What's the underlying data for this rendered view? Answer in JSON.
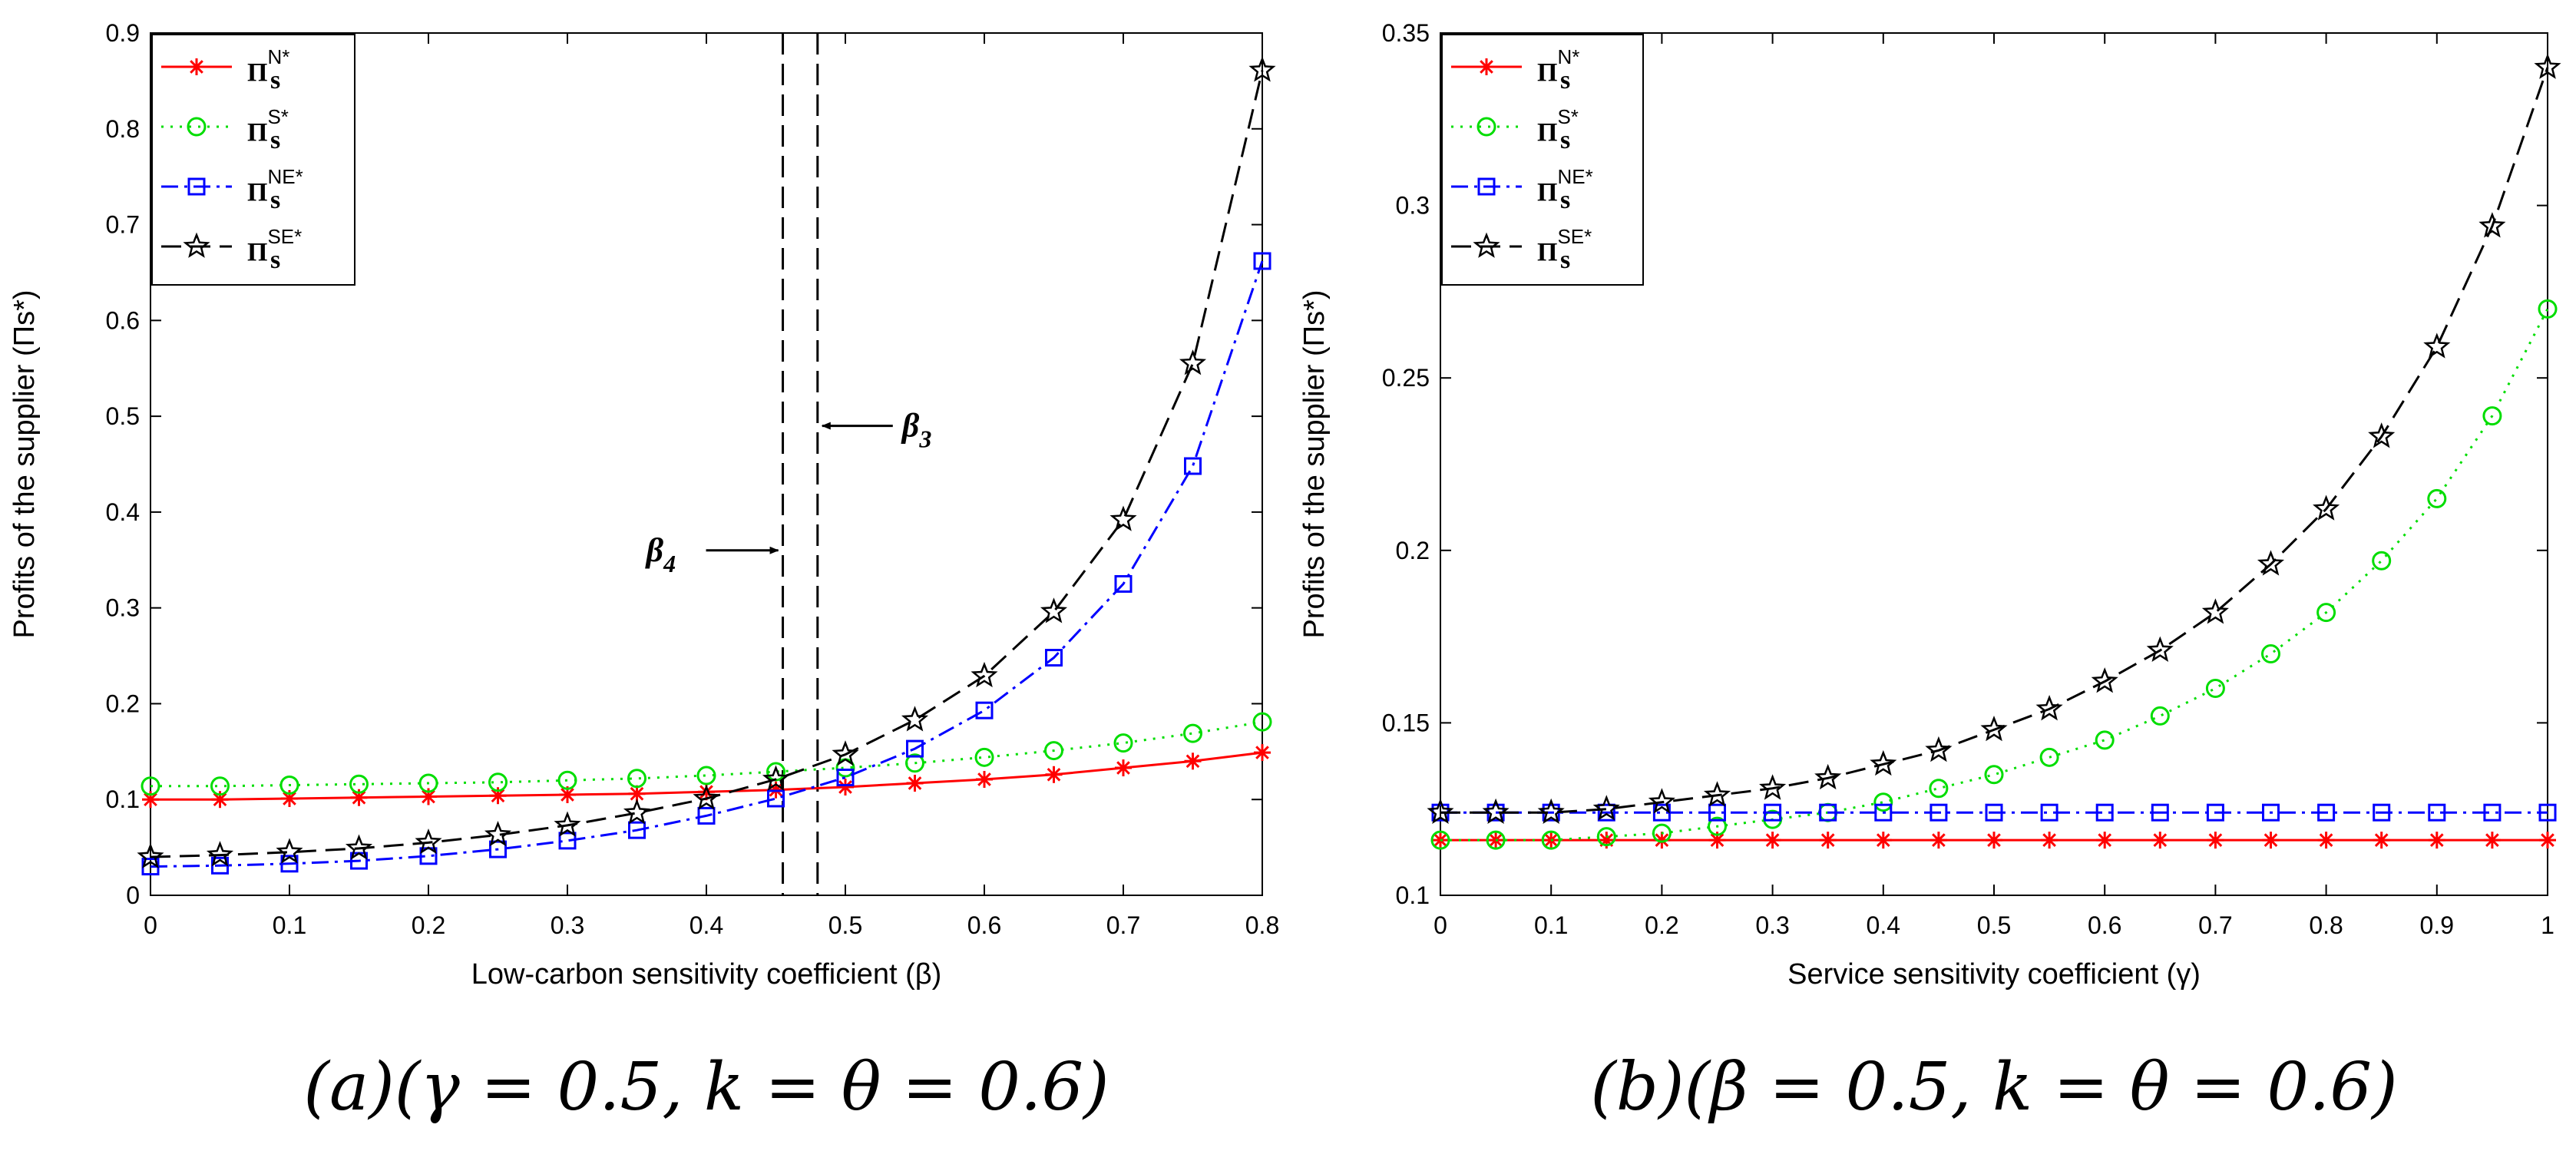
{
  "chart_data": [
    {
      "type": "line",
      "id": "a",
      "xlabel": "Low-carbon sensitivity coefficient (β)",
      "ylabel": "Profits of the supplier (Πs*)",
      "xlim": [
        0,
        0.8
      ],
      "ylim": [
        0,
        0.9
      ],
      "xticks": [
        0,
        0.1,
        0.2,
        0.3,
        0.4,
        0.5,
        0.6,
        0.7,
        0.8
      ],
      "yticks": [
        0,
        0.1,
        0.2,
        0.3,
        0.4,
        0.5,
        0.6,
        0.7,
        0.8,
        0.9
      ],
      "xtick_labels": [
        "0",
        "0.1",
        "0.2",
        "0.3",
        "0.4",
        "0.5",
        "0.6",
        "0.7",
        "0.8"
      ],
      "ytick_labels": [
        "0",
        "0.1",
        "0.2",
        "0.3",
        "0.4",
        "0.5",
        "0.6",
        "0.7",
        "0.8",
        "0.9"
      ],
      "x": [
        0,
        0.05,
        0.1,
        0.15,
        0.2,
        0.25,
        0.3,
        0.35,
        0.4,
        0.45,
        0.5,
        0.55,
        0.6,
        0.65,
        0.7,
        0.75,
        0.8
      ],
      "series": [
        {
          "name": "Πs N*",
          "base": "Π",
          "sub": "s",
          "sup": "N*",
          "color": "#ff0000",
          "marker": "asterisk",
          "dash": "",
          "values": [
            0.1,
            0.1,
            0.101,
            0.102,
            0.103,
            0.104,
            0.105,
            0.106,
            0.108,
            0.11,
            0.113,
            0.117,
            0.121,
            0.126,
            0.133,
            0.14,
            0.149
          ]
        },
        {
          "name": "Πs S*",
          "base": "Π",
          "sub": "s",
          "sup": "S*",
          "color": "#00dd00",
          "marker": "circle",
          "dash": "3,9",
          "values": [
            0.114,
            0.114,
            0.115,
            0.116,
            0.117,
            0.118,
            0.12,
            0.122,
            0.125,
            0.129,
            0.133,
            0.138,
            0.144,
            0.151,
            0.159,
            0.169,
            0.181
          ]
        },
        {
          "name": "Πs NE*",
          "base": "Π",
          "sub": "s",
          "sup": "NE*",
          "color": "#0000ff",
          "marker": "square",
          "dash": "22,8,4,8",
          "values": [
            0.03,
            0.031,
            0.033,
            0.036,
            0.041,
            0.048,
            0.057,
            0.068,
            0.083,
            0.101,
            0.123,
            0.153,
            0.193,
            0.248,
            0.325,
            0.448,
            0.662
          ]
        },
        {
          "name": "Πs SE*",
          "base": "Π",
          "sub": "s",
          "sup": "SE*",
          "color": "#000000",
          "marker": "star",
          "dash": "26,12",
          "values": [
            0.04,
            0.042,
            0.045,
            0.049,
            0.055,
            0.063,
            0.073,
            0.086,
            0.101,
            0.121,
            0.147,
            0.183,
            0.229,
            0.296,
            0.392,
            0.555,
            0.861
          ]
        }
      ],
      "vlines": [
        {
          "x": 0.455,
          "label_main": "β",
          "label_sub": "4"
        },
        {
          "x": 0.48,
          "label_main": "β",
          "label_sub": "3"
        }
      ],
      "caption": "(a)(γ = 0.5,  k = θ = 0.6)"
    },
    {
      "type": "line",
      "id": "b",
      "xlabel": "Service sensitivity coefficient (γ)",
      "ylabel": "Profits of the supplier (Πs*)",
      "xlim": [
        0,
        1
      ],
      "ylim": [
        0.1,
        0.35
      ],
      "xticks": [
        0,
        0.1,
        0.2,
        0.3,
        0.4,
        0.5,
        0.6,
        0.7,
        0.8,
        0.9,
        1
      ],
      "yticks": [
        0.1,
        0.15,
        0.2,
        0.25,
        0.3,
        0.35
      ],
      "xtick_labels": [
        "0",
        "0.1",
        "0.2",
        "0.3",
        "0.4",
        "0.5",
        "0.6",
        "0.7",
        "0.8",
        "0.9",
        "1"
      ],
      "ytick_labels": [
        "0.1",
        "0.15",
        "0.2",
        "0.25",
        "0.3",
        "0.35"
      ],
      "x": [
        0,
        0.05,
        0.1,
        0.15,
        0.2,
        0.25,
        0.3,
        0.35,
        0.4,
        0.45,
        0.5,
        0.55,
        0.6,
        0.65,
        0.7,
        0.75,
        0.8,
        0.85,
        0.9,
        0.95,
        1
      ],
      "series": [
        {
          "name": "Πs N*",
          "base": "Π",
          "sub": "s",
          "sup": "N*",
          "color": "#ff0000",
          "marker": "asterisk",
          "dash": "",
          "values": [
            0.116,
            0.116,
            0.116,
            0.116,
            0.116,
            0.116,
            0.116,
            0.116,
            0.116,
            0.116,
            0.116,
            0.116,
            0.116,
            0.116,
            0.116,
            0.116,
            0.116,
            0.116,
            0.116,
            0.116,
            0.116
          ]
        },
        {
          "name": "Πs S*",
          "base": "Π",
          "sub": "s",
          "sup": "S*",
          "color": "#00dd00",
          "marker": "circle",
          "dash": "3,9",
          "values": [
            0.116,
            0.116,
            0.116,
            0.117,
            0.118,
            0.12,
            0.122,
            0.124,
            0.127,
            0.131,
            0.135,
            0.14,
            0.145,
            0.152,
            0.16,
            0.17,
            0.182,
            0.197,
            0.215,
            0.239,
            0.27
          ]
        },
        {
          "name": "Πs NE*",
          "base": "Π",
          "sub": "s",
          "sup": "NE*",
          "color": "#0000ff",
          "marker": "square",
          "dash": "22,8,4,8",
          "values": [
            0.124,
            0.124,
            0.124,
            0.124,
            0.124,
            0.124,
            0.124,
            0.124,
            0.124,
            0.124,
            0.124,
            0.124,
            0.124,
            0.124,
            0.124,
            0.124,
            0.124,
            0.124,
            0.124,
            0.124,
            0.124
          ]
        },
        {
          "name": "Πs SE*",
          "base": "Π",
          "sub": "s",
          "sup": "SE*",
          "color": "#000000",
          "marker": "star",
          "dash": "26,12",
          "values": [
            0.124,
            0.124,
            0.124,
            0.125,
            0.127,
            0.129,
            0.131,
            0.134,
            0.138,
            0.142,
            0.148,
            0.154,
            0.162,
            0.171,
            0.182,
            0.196,
            0.212,
            0.233,
            0.259,
            0.294,
            0.34
          ]
        }
      ],
      "vlines": [],
      "caption": "(b)(β = 0.5,  k = θ = 0.6)"
    }
  ]
}
